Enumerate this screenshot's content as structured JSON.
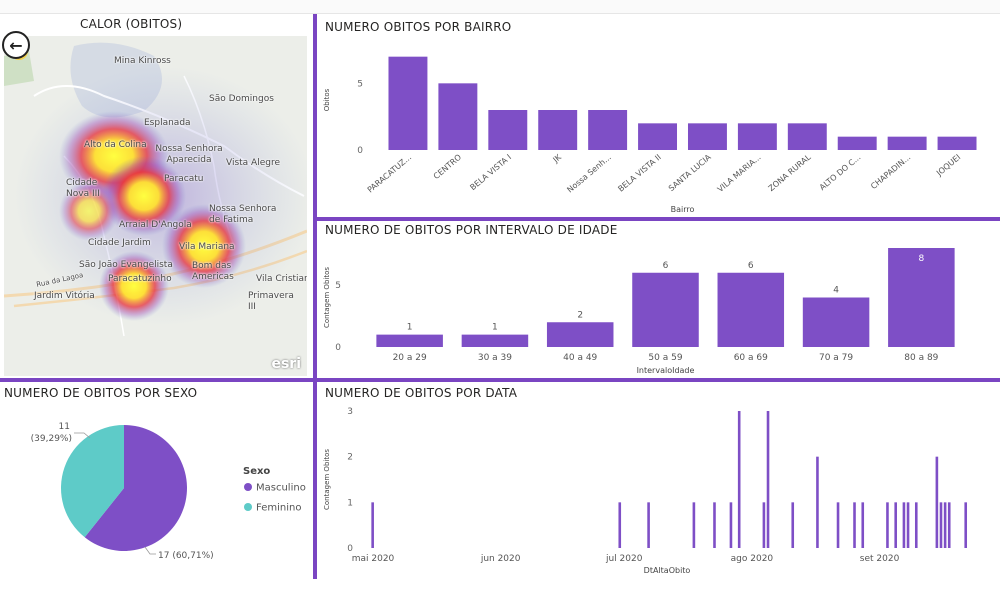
{
  "panels": {
    "map_title": "CALOR (OBITOS)",
    "bairro_title": "NUMERO OBITOS POR BAIRRO",
    "idade_title": "NUMERO DE OBITOS POR INTERVALO DE IDADE",
    "sexo_title": "NUMERO DE OBITOS POR SEXO",
    "data_title": "NUMERO DE OBITOS POR DATA"
  },
  "map": {
    "labels": [
      "Mina Kinross",
      "São Domingos",
      "Esplanada",
      "Alto da Colina",
      "Nossa Senhora Aparecida",
      "Vista Alegre",
      "Cidade Nova III",
      "Paracatu",
      "Arraial D'Angola",
      "Nossa Senhora de Fatima",
      "Cidade Jardim",
      "Vila Mariana",
      "São João Evangelista",
      "Paracatuzinho",
      "Bom das Americas",
      "Vila Cristiano",
      "Jardim Vitória",
      "Primavera III",
      "Rua da Lagoa"
    ],
    "attribution": "esri",
    "back_icon": "back-arrow-icon",
    "menu_icon": "hamburger-icon"
  },
  "chart_data": [
    {
      "type": "bar",
      "title": "NUMERO OBITOS POR BAIRRO",
      "xlabel": "Bairro",
      "ylabel": "Obitos",
      "categories": [
        "PARACATUZ...",
        "CENTRO",
        "BELA VISTA I",
        "JK",
        "Nossa Senh...",
        "BELA VISTA II",
        "SANTA LUCIA",
        "VILA MARIA...",
        "ZONA RURAL",
        "ALTO DO C...",
        "CHAPADIN...",
        "JOQUEI"
      ],
      "values": [
        7,
        5,
        3,
        3,
        3,
        2,
        2,
        2,
        2,
        1,
        1,
        1
      ],
      "yticks": [
        0,
        5
      ],
      "ylim": [
        0,
        7.5
      ],
      "color": "#7e4fc6"
    },
    {
      "type": "bar",
      "title": "NUMERO DE OBITOS POR INTERVALO DE IDADE",
      "xlabel": "IntervaloIdade",
      "ylabel": "Contagem Obitos",
      "categories": [
        "20 a 29",
        "30 a 39",
        "40 a 49",
        "50 a 59",
        "60 a 69",
        "70 a 79",
        "80 a 89"
      ],
      "values": [
        1,
        1,
        2,
        6,
        6,
        4,
        8
      ],
      "data_labels": [
        "1",
        "1",
        "2",
        "6",
        "6",
        "4",
        "8"
      ],
      "yticks": [
        0,
        5
      ],
      "ylim": [
        0,
        8
      ],
      "color": "#7e4fc6"
    },
    {
      "type": "pie",
      "title": "NUMERO DE OBITOS POR SEXO",
      "legend_title": "Sexo",
      "legend_position": "right",
      "slices": [
        {
          "name": "Masculino",
          "value": 17,
          "label": "17 (60,71%)",
          "color": "#7e4fc6"
        },
        {
          "name": "Feminino",
          "value": 11,
          "label": "11\n(39,29%)",
          "color": "#5ecbc8"
        }
      ],
      "label_masc": "17 (60,71%)",
      "label_fem_count": "11",
      "label_fem_pct": "(39,29%)"
    },
    {
      "type": "bar",
      "title": "NUMERO DE OBITOS POR DATA",
      "xlabel": "DtAltaObito",
      "ylabel": "Contagem Obitos",
      "xticks": [
        "mai 2020",
        "jun 2020",
        "jul 2020",
        "ago 2020",
        "set 2020"
      ],
      "yticks": [
        0,
        1,
        2,
        3
      ],
      "ylim": [
        0,
        3
      ],
      "x": [
        "2020-05-04",
        "2020-07-03",
        "2020-07-10",
        "2020-07-21",
        "2020-07-26",
        "2020-07-30",
        "2020-08-01",
        "2020-08-07",
        "2020-08-08",
        "2020-08-14",
        "2020-08-20",
        "2020-08-25",
        "2020-08-29",
        "2020-08-31",
        "2020-09-06",
        "2020-09-08",
        "2020-09-10",
        "2020-09-11",
        "2020-09-13",
        "2020-09-18",
        "2020-09-19",
        "2020-09-20",
        "2020-09-21",
        "2020-09-25"
      ],
      "values": [
        1,
        1,
        1,
        1,
        1,
        1,
        3,
        1,
        3,
        1,
        2,
        1,
        1,
        1,
        1,
        1,
        1,
        1,
        1,
        2,
        1,
        1,
        1,
        1
      ],
      "color": "#7e4fc6"
    }
  ]
}
